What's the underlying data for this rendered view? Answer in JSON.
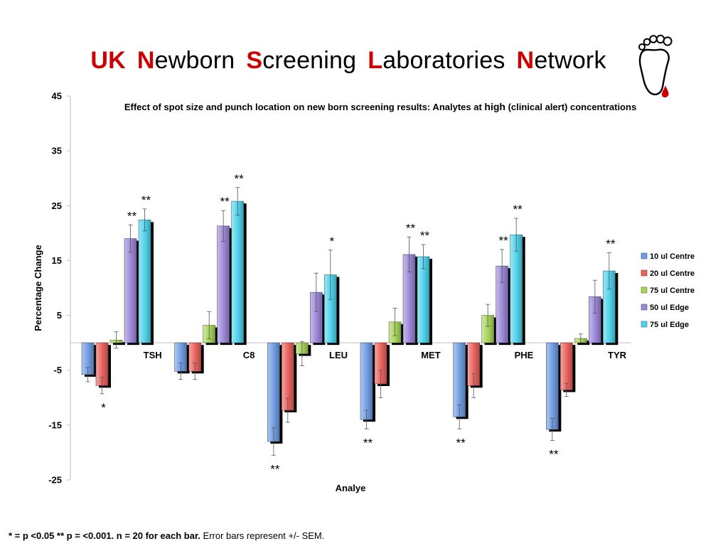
{
  "title": {
    "words": [
      {
        "initial": "UK",
        "rest": ""
      },
      {
        "initial": "N",
        "rest": "ewborn"
      },
      {
        "initial": "S",
        "rest": "creening"
      },
      {
        "initial": "L",
        "rest": "aboratories"
      },
      {
        "initial": "N",
        "rest": "etwork"
      }
    ]
  },
  "logo": {
    "icon": "foot-with-blood-drop-icon"
  },
  "chart_data": {
    "type": "bar",
    "title_parts": [
      "Effect of spot size and punch location on new born screening results: Analytes at ",
      "high",
      " (clinical alert) concentrations"
    ],
    "xlabel": "Analye",
    "ylabel": "Percentage Change",
    "ylim": [
      -25,
      45
    ],
    "yticks": [
      -25,
      -15,
      -5,
      5,
      15,
      25,
      35,
      45
    ],
    "categories": [
      "TSH",
      "C8",
      "LEU",
      "MET",
      "PHE",
      "TYR"
    ],
    "legend_position": "right",
    "grid": false,
    "series": [
      {
        "name": "10 ul Centre",
        "color": "#6f9be0",
        "values": [
          -5.8,
          -5.2,
          -18.0,
          -14.0,
          -13.5,
          -15.8
        ],
        "errors": [
          1.3,
          1.5,
          2.5,
          1.7,
          2.2,
          2.0
        ],
        "sig": [
          "",
          "",
          "**",
          "**",
          "**",
          "**"
        ]
      },
      {
        "name": "20 ul Centre",
        "color": "#e8615c",
        "values": [
          -7.8,
          -5.2,
          -12.3,
          -7.5,
          -7.8,
          -8.6
        ],
        "errors": [
          1.5,
          1.5,
          2.2,
          2.5,
          2.2,
          1.2
        ],
        "sig": [
          "*",
          "",
          "",
          "",
          "",
          ""
        ]
      },
      {
        "name": "75 ul Centre",
        "color": "#a6d35a",
        "values": [
          0.5,
          3.2,
          -2.0,
          3.8,
          5.0,
          0.8
        ],
        "errors": [
          1.5,
          2.5,
          2.2,
          2.5,
          2.0,
          0.8
        ],
        "sig": [
          "",
          "",
          "",
          "",
          "",
          ""
        ]
      },
      {
        "name": "50 ul Edge",
        "color": "#9b86d6",
        "values": [
          19.0,
          21.3,
          9.2,
          16.1,
          14.0,
          8.4
        ],
        "errors": [
          2.5,
          2.8,
          3.5,
          3.2,
          3.0,
          3.0
        ],
        "sig": [
          "**",
          "**",
          "",
          "**",
          "**",
          ""
        ]
      },
      {
        "name": "75 ul Edge",
        "color": "#4fd1ea",
        "values": [
          22.4,
          25.8,
          12.4,
          15.7,
          19.7,
          13.1
        ],
        "errors": [
          2.0,
          2.5,
          4.5,
          2.2,
          3.0,
          3.3
        ],
        "sig": [
          "**",
          "**",
          "*",
          "**",
          "**",
          "**"
        ]
      }
    ]
  },
  "footnote": {
    "bold": "* = p <0.05 ** p = <0.001. n = 20 for each bar.",
    "normal": " Error bars represent +/- SEM."
  }
}
